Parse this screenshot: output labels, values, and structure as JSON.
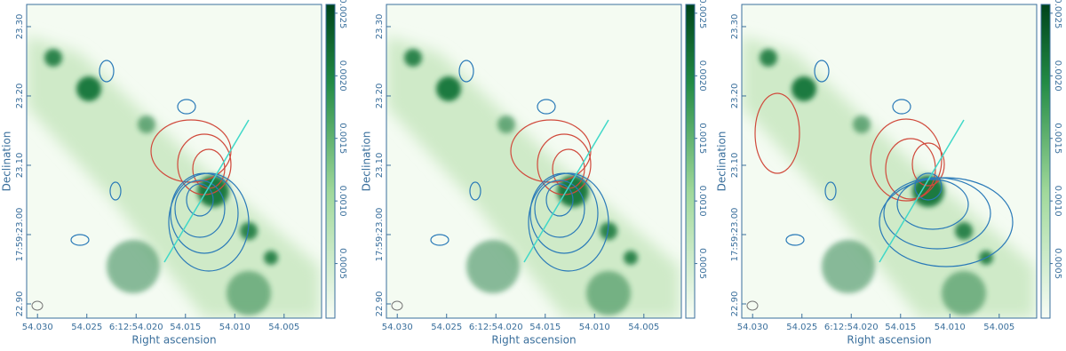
{
  "chart_data": [
    {
      "type": "image",
      "xlabel": "Right ascension",
      "ylabel": "Declination",
      "xlim": [
        54.0311,
        54.0012
      ],
      "ylim": [
        22.8795,
        23.332
      ],
      "xticks": [
        {
          "value": 54.03,
          "label": "54.030"
        },
        {
          "value": 54.025,
          "label": "54.025"
        },
        {
          "value": 54.02,
          "label": "6:12:54.020"
        },
        {
          "value": 54.015,
          "label": "54.015"
        },
        {
          "value": 54.01,
          "label": "54.010"
        },
        {
          "value": 54.005,
          "label": "54.005"
        }
      ],
      "yticks": [
        {
          "value": 22.9,
          "label": "22.90"
        },
        {
          "value": 23.0,
          "label": "17:59:23.00"
        },
        {
          "value": 23.1,
          "label": "23.10"
        },
        {
          "value": 23.2,
          "label": "23.20"
        },
        {
          "value": 23.3,
          "label": "23.30"
        }
      ],
      "clim": [
        6.4e-05,
        0.00257
      ],
      "cticks": [
        {
          "value": 0.0005,
          "label": "0.0005"
        },
        {
          "value": 0.001,
          "label": "0.0010"
        },
        {
          "value": 0.0015,
          "label": "0.0015"
        },
        {
          "value": 0.002,
          "label": "0.0020"
        },
        {
          "value": 0.0025,
          "label": "0.0025"
        }
      ]
    },
    {
      "type": "image",
      "xlabel": "Right ascension",
      "ylabel": "Declination",
      "xlim": [
        54.0311,
        54.0012
      ],
      "ylim": [
        22.8795,
        23.332
      ],
      "xticks": [
        {
          "value": 54.03,
          "label": "54.030"
        },
        {
          "value": 54.025,
          "label": "54.025"
        },
        {
          "value": 54.02,
          "label": "6:12:54.020"
        },
        {
          "value": 54.015,
          "label": "54.015"
        },
        {
          "value": 54.01,
          "label": "54.010"
        },
        {
          "value": 54.005,
          "label": "54.005"
        }
      ],
      "yticks": [
        {
          "value": 22.9,
          "label": "22.90"
        },
        {
          "value": 23.0,
          "label": "17:59:23.00"
        },
        {
          "value": 23.1,
          "label": "23.10"
        },
        {
          "value": 23.2,
          "label": "23.20"
        },
        {
          "value": 23.3,
          "label": "23.30"
        }
      ],
      "clim": [
        6.4e-05,
        0.00257
      ],
      "cticks": [
        {
          "value": 0.0005,
          "label": "0.0005"
        },
        {
          "value": 0.001,
          "label": "0.0010"
        },
        {
          "value": 0.0015,
          "label": "0.0015"
        },
        {
          "value": 0.002,
          "label": "0.0020"
        },
        {
          "value": 0.0025,
          "label": "0.0025"
        }
      ]
    },
    {
      "type": "image",
      "xlabel": "Right ascension",
      "ylabel": "Declination",
      "xlim": [
        54.0311,
        54.0012
      ],
      "ylim": [
        22.8795,
        23.332
      ],
      "xticks": [
        {
          "value": 54.03,
          "label": "54.030"
        },
        {
          "value": 54.025,
          "label": "54.025"
        },
        {
          "value": 54.02,
          "label": "6:12:54.020"
        },
        {
          "value": 54.015,
          "label": "54.015"
        },
        {
          "value": 54.01,
          "label": "54.010"
        },
        {
          "value": 54.005,
          "label": "54.005"
        }
      ],
      "yticks": [
        {
          "value": 22.9,
          "label": "22.90"
        },
        {
          "value": 23.0,
          "label": "17:59:23.00"
        },
        {
          "value": 23.1,
          "label": "23.10"
        },
        {
          "value": 23.2,
          "label": "23.20"
        },
        {
          "value": 23.3,
          "label": "23.30"
        }
      ],
      "clim": [
        6.4e-05,
        0.00257
      ],
      "cticks": [
        {
          "value": 0.0005,
          "label": "0.0005"
        },
        {
          "value": 0.001,
          "label": "0.0010"
        },
        {
          "value": 0.0015,
          "label": "0.0015"
        },
        {
          "value": 0.002,
          "label": "0.0020"
        },
        {
          "value": 0.0025,
          "label": "0.0025"
        }
      ]
    }
  ]
}
